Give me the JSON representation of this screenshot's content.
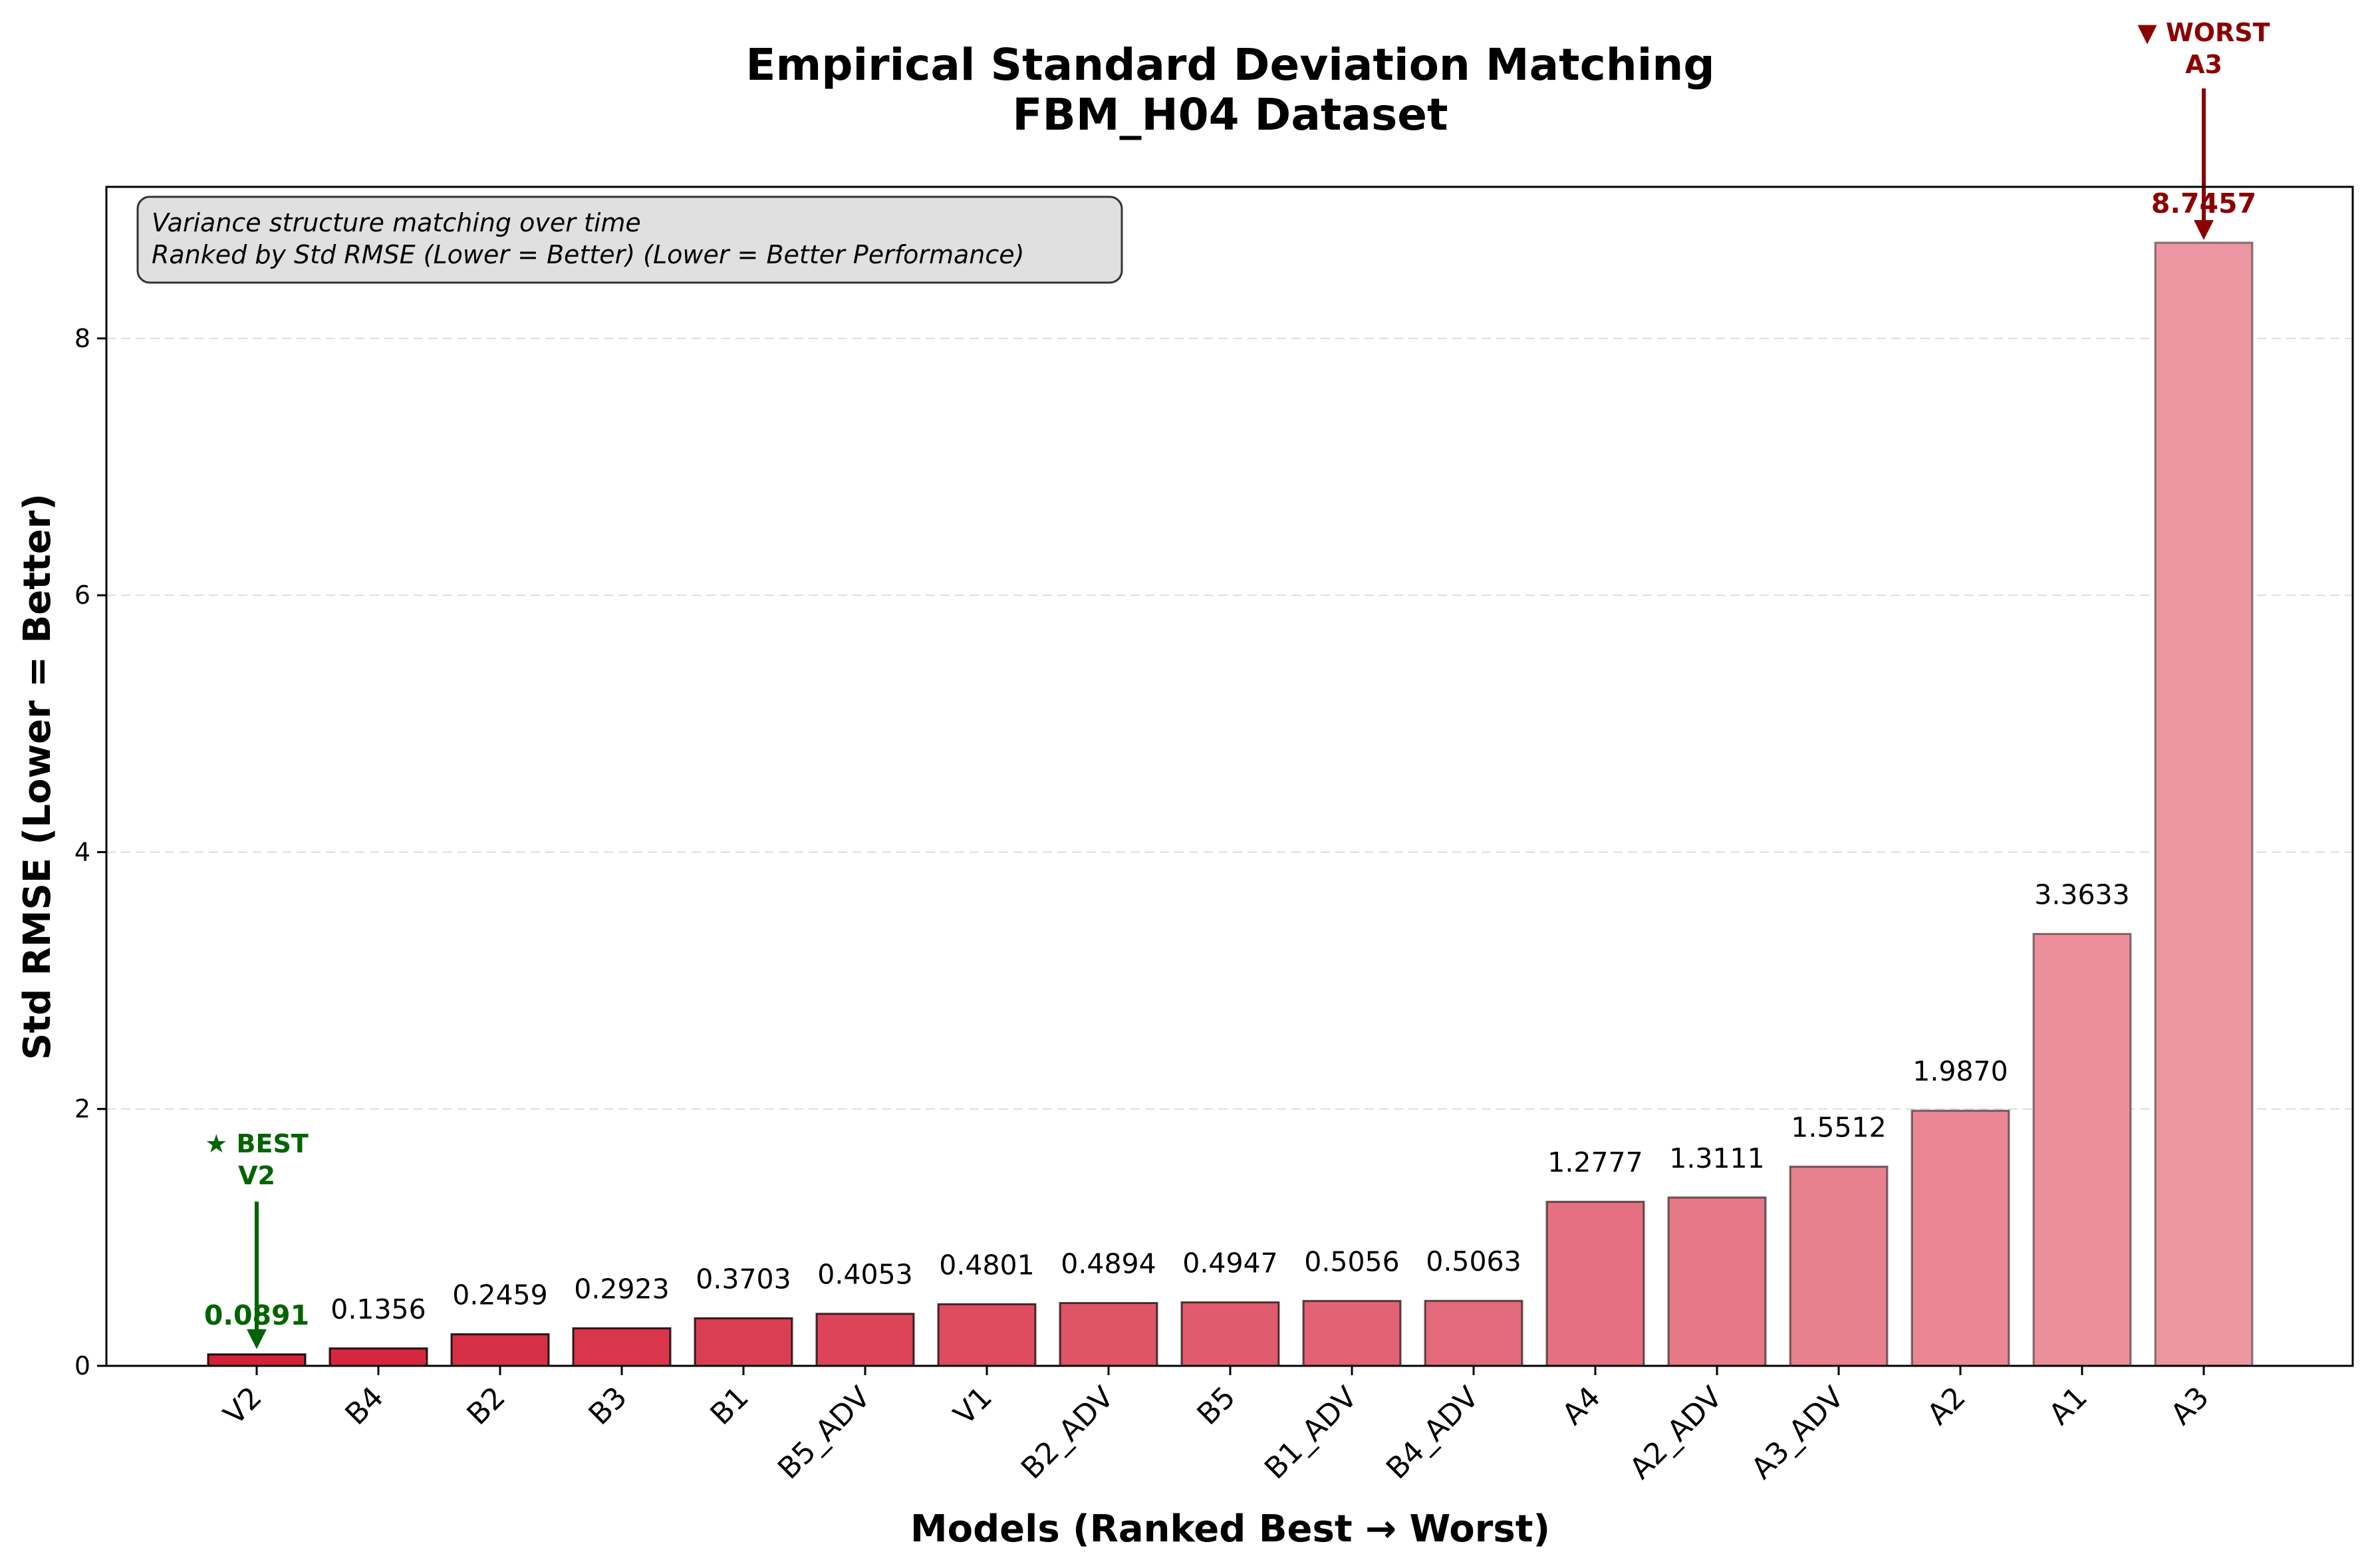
{
  "chart_data": {
    "type": "bar",
    "title_line1": "Empirical Standard Deviation Matching",
    "title_line2": "FBM_H04 Dataset",
    "xlabel": "Models (Ranked Best → Worst)",
    "ylabel": "Std RMSE (Lower = Better)",
    "ylim": [
      0,
      9.18
    ],
    "yticks": [
      "0",
      "2",
      "4",
      "6",
      "8"
    ],
    "grid": "y-dashed",
    "info_box": {
      "line1": "Variance structure matching over time",
      "line2": "Ranked by Std RMSE (Lower = Better) (Lower = Better Performance)"
    },
    "categories": [
      "V2",
      "B4",
      "B2",
      "B3",
      "B1",
      "B5_ADV",
      "V1",
      "B2_ADV",
      "B5",
      "B1_ADV",
      "B4_ADV",
      "A4",
      "A2_ADV",
      "A3_ADV",
      "A2",
      "A1",
      "A3"
    ],
    "values": [
      0.0891,
      0.1356,
      0.2459,
      0.2923,
      0.3703,
      0.4053,
      0.4801,
      0.4894,
      0.4947,
      0.5056,
      0.5063,
      1.2777,
      1.3111,
      1.5512,
      1.987,
      3.3633,
      8.7457
    ],
    "value_labels": [
      "0.0891",
      "0.1356",
      "0.2459",
      "0.2923",
      "0.3703",
      "0.4053",
      "0.4801",
      "0.4894",
      "0.4947",
      "0.5056",
      "0.5063",
      "1.2777",
      "1.3111",
      "1.5512",
      "1.9870",
      "3.3633",
      "8.7457"
    ],
    "best": {
      "label": "★ BEST",
      "model": "V2",
      "color": "#006400"
    },
    "worst": {
      "label": "▼ WORST",
      "model": "A3",
      "color": "#8b0000"
    },
    "color_range": {
      "from": "#d42038",
      "to": "#ec96a1"
    }
  }
}
